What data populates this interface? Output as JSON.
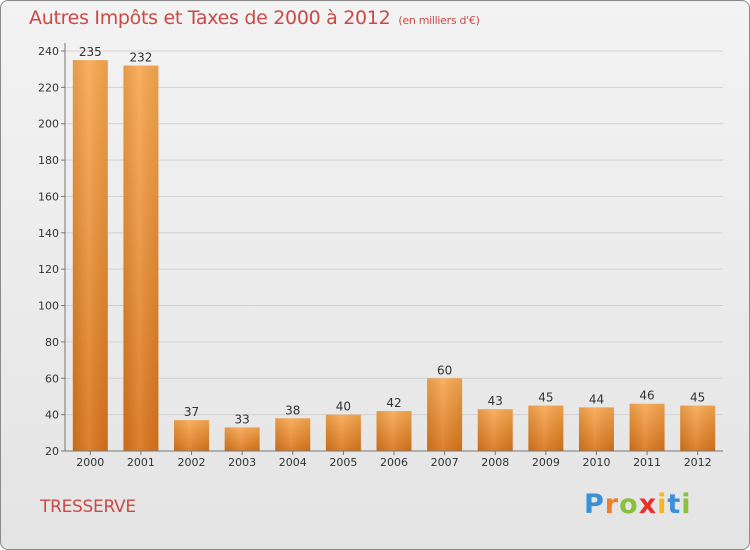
{
  "header": {
    "title": "Autres Impôts et Taxes de 2000 à 2012",
    "unit": "(en milliers d'€)"
  },
  "footer": {
    "place": "TRESSERVE",
    "brand_letters": [
      "P",
      "r",
      "o",
      "x",
      "i",
      "t",
      "i"
    ],
    "brand_colors": [
      "#3a8fd6",
      "#f07f2a",
      "#8bc03c",
      "#e8302a",
      "#f5b820",
      "#3a8fd6",
      "#8bc03c"
    ]
  },
  "chart_data": {
    "type": "bar",
    "categories": [
      "2000",
      "2001",
      "2002",
      "2003",
      "2004",
      "2005",
      "2006",
      "2007",
      "2008",
      "2009",
      "2010",
      "2011",
      "2012"
    ],
    "values": [
      235,
      232,
      37,
      33,
      38,
      40,
      42,
      60,
      43,
      45,
      44,
      46,
      45
    ],
    "ylim": [
      20,
      240
    ],
    "yticks": [
      20,
      40,
      60,
      80,
      100,
      120,
      140,
      160,
      180,
      200,
      220,
      240
    ],
    "grid": true,
    "bar_color": "#f0952e"
  }
}
